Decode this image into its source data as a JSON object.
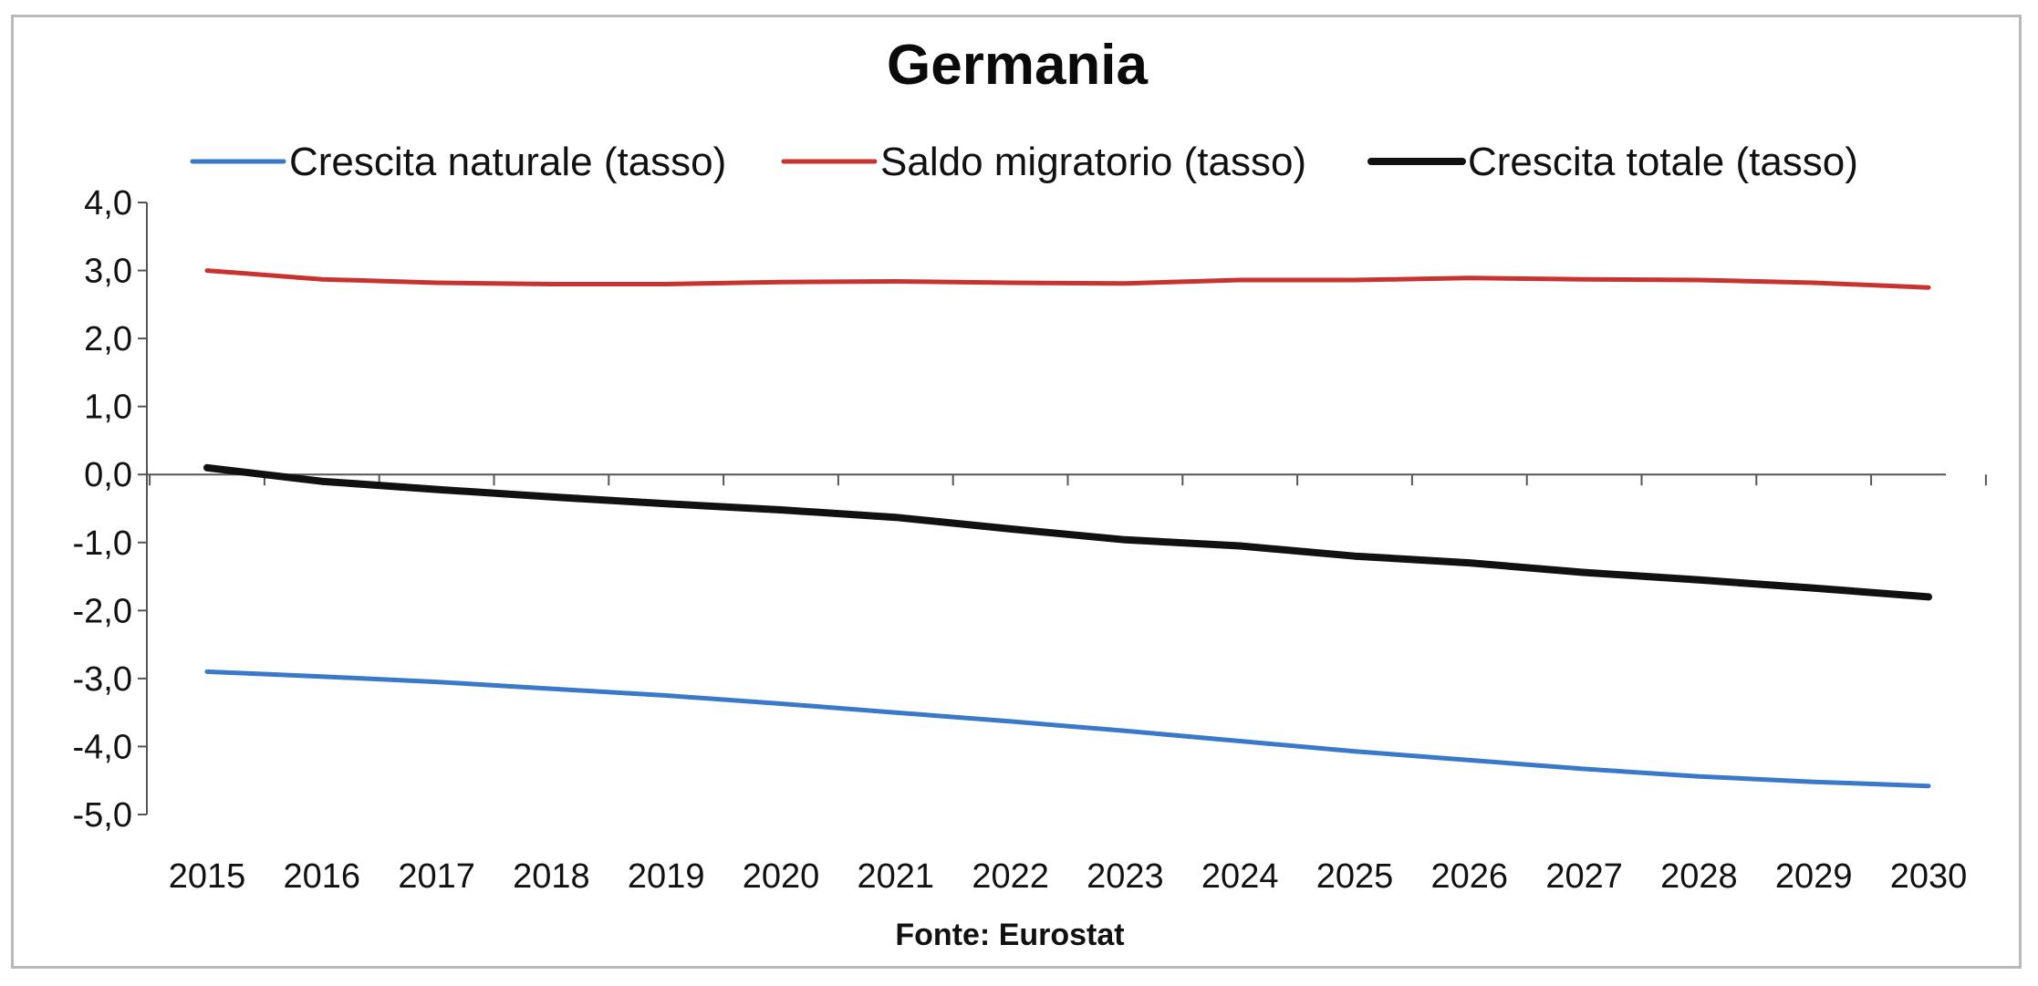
{
  "chart_data": {
    "type": "line",
    "title": "Germania",
    "xlabel": "",
    "ylabel": "",
    "x": [
      "2015",
      "2016",
      "2017",
      "2018",
      "2019",
      "2020",
      "2021",
      "2022",
      "2023",
      "2024",
      "2025",
      "2026",
      "2027",
      "2028",
      "2029",
      "2030"
    ],
    "ylim": [
      -5.0,
      4.0
    ],
    "yticks": [
      "4,0",
      "3,0",
      "2,0",
      "1,0",
      "0,0",
      "-1,0",
      "-2,0",
      "-3,0",
      "-4,0",
      "-5,0"
    ],
    "ytick_values": [
      4,
      3,
      2,
      1,
      0,
      -1,
      -2,
      -3,
      -4,
      -5
    ],
    "grid": false,
    "legend_position": "top",
    "series": [
      {
        "name": "Crescita naturale (tasso)",
        "color": "#3a78c9",
        "values": [
          -2.9,
          -2.97,
          -3.05,
          -3.15,
          -3.25,
          -3.37,
          -3.5,
          -3.63,
          -3.77,
          -3.92,
          -4.07,
          -4.2,
          -4.33,
          -4.44,
          -4.52,
          -4.58
        ]
      },
      {
        "name": "Saldo migratorio (tasso)",
        "color": "#c8332f",
        "values": [
          3.0,
          2.87,
          2.82,
          2.8,
          2.8,
          2.83,
          2.84,
          2.82,
          2.81,
          2.86,
          2.86,
          2.89,
          2.87,
          2.86,
          2.82,
          2.75
        ]
      },
      {
        "name": "Crescita totale (tasso)",
        "color": "#111111",
        "values": [
          0.1,
          -0.1,
          -0.22,
          -0.33,
          -0.43,
          -0.52,
          -0.63,
          -0.8,
          -0.96,
          -1.05,
          -1.2,
          -1.3,
          -1.44,
          -1.55,
          -1.67,
          -1.8
        ]
      }
    ],
    "source": "Fonte: Eurostat"
  }
}
